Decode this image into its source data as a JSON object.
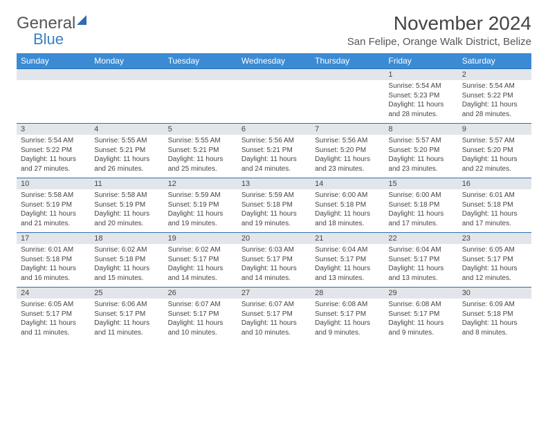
{
  "brand": {
    "word1": "General",
    "word2": "Blue"
  },
  "title": "November 2024",
  "location": "San Felipe, Orange Walk District, Belize",
  "colors": {
    "header_bg": "#3b8bd4",
    "header_text": "#ffffff",
    "daynum_bg": "#e2e6ea",
    "row_border": "#2e6bb0",
    "text": "#444444",
    "brand_gray": "#555555",
    "brand_blue": "#3b7fc4"
  },
  "weekdays": [
    "Sunday",
    "Monday",
    "Tuesday",
    "Wednesday",
    "Thursday",
    "Friday",
    "Saturday"
  ],
  "weeks": [
    [
      null,
      null,
      null,
      null,
      null,
      {
        "n": "1",
        "sunrise": "5:54 AM",
        "sunset": "5:23 PM",
        "dl1": "Daylight: 11 hours",
        "dl2": "and 28 minutes."
      },
      {
        "n": "2",
        "sunrise": "5:54 AM",
        "sunset": "5:22 PM",
        "dl1": "Daylight: 11 hours",
        "dl2": "and 28 minutes."
      }
    ],
    [
      {
        "n": "3",
        "sunrise": "5:54 AM",
        "sunset": "5:22 PM",
        "dl1": "Daylight: 11 hours",
        "dl2": "and 27 minutes."
      },
      {
        "n": "4",
        "sunrise": "5:55 AM",
        "sunset": "5:21 PM",
        "dl1": "Daylight: 11 hours",
        "dl2": "and 26 minutes."
      },
      {
        "n": "5",
        "sunrise": "5:55 AM",
        "sunset": "5:21 PM",
        "dl1": "Daylight: 11 hours",
        "dl2": "and 25 minutes."
      },
      {
        "n": "6",
        "sunrise": "5:56 AM",
        "sunset": "5:21 PM",
        "dl1": "Daylight: 11 hours",
        "dl2": "and 24 minutes."
      },
      {
        "n": "7",
        "sunrise": "5:56 AM",
        "sunset": "5:20 PM",
        "dl1": "Daylight: 11 hours",
        "dl2": "and 23 minutes."
      },
      {
        "n": "8",
        "sunrise": "5:57 AM",
        "sunset": "5:20 PM",
        "dl1": "Daylight: 11 hours",
        "dl2": "and 23 minutes."
      },
      {
        "n": "9",
        "sunrise": "5:57 AM",
        "sunset": "5:20 PM",
        "dl1": "Daylight: 11 hours",
        "dl2": "and 22 minutes."
      }
    ],
    [
      {
        "n": "10",
        "sunrise": "5:58 AM",
        "sunset": "5:19 PM",
        "dl1": "Daylight: 11 hours",
        "dl2": "and 21 minutes."
      },
      {
        "n": "11",
        "sunrise": "5:58 AM",
        "sunset": "5:19 PM",
        "dl1": "Daylight: 11 hours",
        "dl2": "and 20 minutes."
      },
      {
        "n": "12",
        "sunrise": "5:59 AM",
        "sunset": "5:19 PM",
        "dl1": "Daylight: 11 hours",
        "dl2": "and 19 minutes."
      },
      {
        "n": "13",
        "sunrise": "5:59 AM",
        "sunset": "5:18 PM",
        "dl1": "Daylight: 11 hours",
        "dl2": "and 19 minutes."
      },
      {
        "n": "14",
        "sunrise": "6:00 AM",
        "sunset": "5:18 PM",
        "dl1": "Daylight: 11 hours",
        "dl2": "and 18 minutes."
      },
      {
        "n": "15",
        "sunrise": "6:00 AM",
        "sunset": "5:18 PM",
        "dl1": "Daylight: 11 hours",
        "dl2": "and 17 minutes."
      },
      {
        "n": "16",
        "sunrise": "6:01 AM",
        "sunset": "5:18 PM",
        "dl1": "Daylight: 11 hours",
        "dl2": "and 17 minutes."
      }
    ],
    [
      {
        "n": "17",
        "sunrise": "6:01 AM",
        "sunset": "5:18 PM",
        "dl1": "Daylight: 11 hours",
        "dl2": "and 16 minutes."
      },
      {
        "n": "18",
        "sunrise": "6:02 AM",
        "sunset": "5:18 PM",
        "dl1": "Daylight: 11 hours",
        "dl2": "and 15 minutes."
      },
      {
        "n": "19",
        "sunrise": "6:02 AM",
        "sunset": "5:17 PM",
        "dl1": "Daylight: 11 hours",
        "dl2": "and 14 minutes."
      },
      {
        "n": "20",
        "sunrise": "6:03 AM",
        "sunset": "5:17 PM",
        "dl1": "Daylight: 11 hours",
        "dl2": "and 14 minutes."
      },
      {
        "n": "21",
        "sunrise": "6:04 AM",
        "sunset": "5:17 PM",
        "dl1": "Daylight: 11 hours",
        "dl2": "and 13 minutes."
      },
      {
        "n": "22",
        "sunrise": "6:04 AM",
        "sunset": "5:17 PM",
        "dl1": "Daylight: 11 hours",
        "dl2": "and 13 minutes."
      },
      {
        "n": "23",
        "sunrise": "6:05 AM",
        "sunset": "5:17 PM",
        "dl1": "Daylight: 11 hours",
        "dl2": "and 12 minutes."
      }
    ],
    [
      {
        "n": "24",
        "sunrise": "6:05 AM",
        "sunset": "5:17 PM",
        "dl1": "Daylight: 11 hours",
        "dl2": "and 11 minutes."
      },
      {
        "n": "25",
        "sunrise": "6:06 AM",
        "sunset": "5:17 PM",
        "dl1": "Daylight: 11 hours",
        "dl2": "and 11 minutes."
      },
      {
        "n": "26",
        "sunrise": "6:07 AM",
        "sunset": "5:17 PM",
        "dl1": "Daylight: 11 hours",
        "dl2": "and 10 minutes."
      },
      {
        "n": "27",
        "sunrise": "6:07 AM",
        "sunset": "5:17 PM",
        "dl1": "Daylight: 11 hours",
        "dl2": "and 10 minutes."
      },
      {
        "n": "28",
        "sunrise": "6:08 AM",
        "sunset": "5:17 PM",
        "dl1": "Daylight: 11 hours",
        "dl2": "and 9 minutes."
      },
      {
        "n": "29",
        "sunrise": "6:08 AM",
        "sunset": "5:17 PM",
        "dl1": "Daylight: 11 hours",
        "dl2": "and 9 minutes."
      },
      {
        "n": "30",
        "sunrise": "6:09 AM",
        "sunset": "5:18 PM",
        "dl1": "Daylight: 11 hours",
        "dl2": "and 8 minutes."
      }
    ]
  ]
}
